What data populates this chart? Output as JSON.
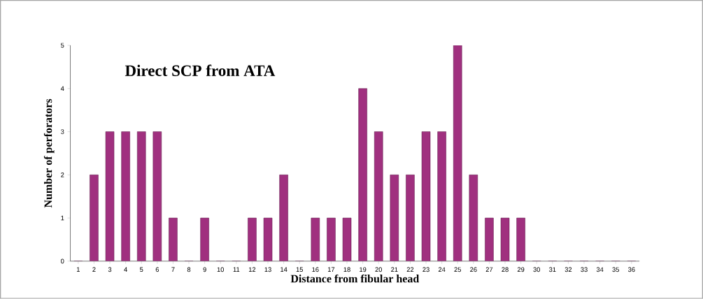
{
  "chart_data": {
    "type": "bar",
    "title": "Direct SCP from ATA",
    "xlabel": "Distance from fibular head",
    "ylabel": "Number of perforators",
    "categories": [
      "1",
      "2",
      "3",
      "4",
      "5",
      "6",
      "7",
      "8",
      "9",
      "10",
      "11",
      "12",
      "13",
      "14",
      "15",
      "16",
      "17",
      "18",
      "19",
      "20",
      "21",
      "22",
      "23",
      "24",
      "25",
      "26",
      "27",
      "28",
      "29",
      "30",
      "31",
      "32",
      "33",
      "34",
      "35",
      "36"
    ],
    "values": [
      0,
      2,
      3,
      3,
      3,
      3,
      1,
      0,
      1,
      0,
      0,
      1,
      1,
      2,
      0,
      1,
      1,
      1,
      4,
      3,
      2,
      2,
      3,
      3,
      5,
      2,
      1,
      1,
      1,
      0,
      0,
      0,
      0,
      0,
      0,
      0
    ],
    "color": "#a0307f",
    "ylim": [
      0,
      5
    ],
    "yticks": [
      0,
      1,
      2,
      3,
      4,
      5
    ],
    "grid": false
  }
}
